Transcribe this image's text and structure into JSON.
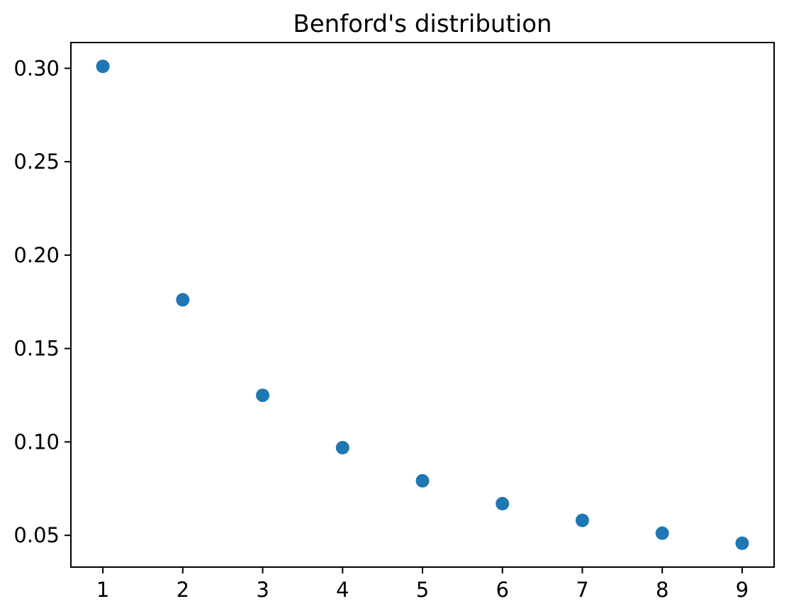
{
  "chart_data": {
    "type": "scatter",
    "title": "Benford's distribution",
    "xlabel": "",
    "ylabel": "",
    "x": [
      1,
      2,
      3,
      4,
      5,
      6,
      7,
      8,
      9
    ],
    "y": [
      0.30103,
      0.17609,
      0.12494,
      0.09691,
      0.07918,
      0.06695,
      0.05799,
      0.05115,
      0.04576
    ],
    "xlim": [
      0.6,
      9.4
    ],
    "ylim": [
      0.033,
      0.3138
    ],
    "x_ticks": [
      1,
      2,
      3,
      4,
      5,
      6,
      7,
      8,
      9
    ],
    "x_tick_labels": [
      "1",
      "2",
      "3",
      "4",
      "5",
      "6",
      "7",
      "8",
      "9"
    ],
    "y_ticks": [
      0.05,
      0.1,
      0.15,
      0.2,
      0.25,
      0.3
    ],
    "y_tick_labels": [
      "0.05",
      "0.10",
      "0.15",
      "0.20",
      "0.25",
      "0.30"
    ],
    "grid": false,
    "legend": false,
    "marker_color": "#1f77b4",
    "marker_radius_px": 9.5,
    "axis_color": "#000000",
    "background_color": "#ffffff"
  }
}
